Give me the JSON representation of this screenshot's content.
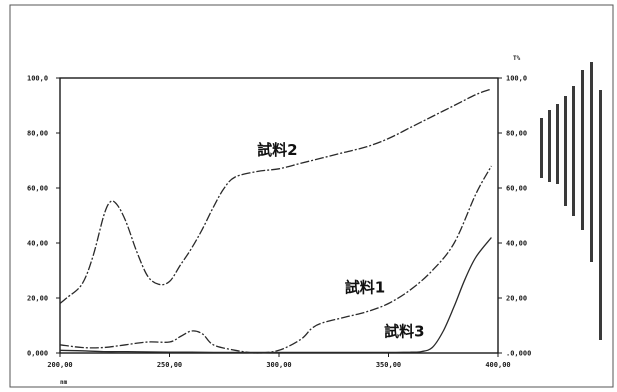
{
  "chart_data": {
    "type": "line",
    "title": "",
    "xlabel": "",
    "ylabel": "",
    "xlim": [
      200,
      400
    ],
    "ylim": [
      0,
      100
    ],
    "x_ticks": [
      "200,00",
      "250,00",
      "300,00",
      "350,00",
      "400,00"
    ],
    "y_ticks_left": [
      "0,000",
      "20,00",
      "40,00",
      "60,00",
      "80,00",
      "100,0"
    ],
    "y_ticks_right": [
      ".0,000",
      "20,00",
      "40,00",
      "60,00",
      "80,00",
      "100,0"
    ],
    "y_unit_right": "T%",
    "x_unit": "nm",
    "series": [
      {
        "name": "試料2",
        "style": "dash-dot",
        "x": [
          200,
          203,
          210,
          215,
          220,
          223,
          226,
          230,
          235,
          240,
          245,
          250,
          255,
          260,
          265,
          270,
          275,
          280,
          290,
          300,
          310,
          320,
          330,
          340,
          350,
          360,
          370,
          380,
          390,
          397
        ],
        "y": [
          18,
          20,
          25,
          35,
          50,
          55,
          54,
          48,
          37,
          28,
          25,
          26,
          32,
          38,
          45,
          53,
          60,
          64,
          66,
          67,
          69,
          71,
          73,
          75,
          78,
          82,
          86,
          90,
          94,
          96
        ]
      },
      {
        "name": "試料1",
        "style": "dash-dot",
        "x": [
          200,
          210,
          220,
          230,
          240,
          250,
          255,
          260,
          265,
          270,
          280,
          290,
          300,
          310,
          315,
          320,
          330,
          340,
          350,
          360,
          370,
          380,
          390,
          397
        ],
        "y": [
          3,
          2,
          2,
          3,
          4,
          4,
          6,
          8,
          7,
          3,
          1,
          0,
          1,
          5,
          9,
          11,
          13,
          15,
          18,
          23,
          30,
          40,
          58,
          68
        ]
      },
      {
        "name": "試料3",
        "style": "solid",
        "x": [
          200,
          210,
          220,
          230,
          240,
          250,
          260,
          270,
          280,
          290,
          300,
          310,
          320,
          330,
          340,
          350,
          360,
          365,
          370,
          375,
          380,
          385,
          390,
          397
        ],
        "y": [
          1,
          0.8,
          0.5,
          0.5,
          0.4,
          0.3,
          0.3,
          0.2,
          0.2,
          0.2,
          0.2,
          0.2,
          0.2,
          0.2,
          0.2,
          0.2,
          0.3,
          0.5,
          2,
          8,
          17,
          27,
          35,
          42
        ]
      }
    ],
    "annotations": [
      {
        "text": "試料2",
        "x": 290,
        "y": 72
      },
      {
        "text": "試料1",
        "x": 330,
        "y": 22
      },
      {
        "text": "試料3",
        "x": 348,
        "y": 6
      }
    ],
    "grid": false,
    "legend": "none"
  }
}
